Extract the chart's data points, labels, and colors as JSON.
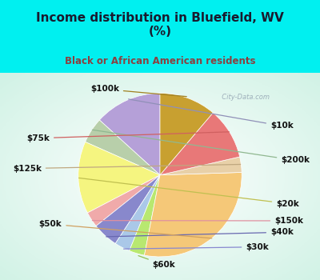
{
  "title": "Income distribution in Bluefield, WV\n(%)",
  "subtitle": "Black or African American residents",
  "title_color": "#1a1a2e",
  "subtitle_color": "#8b4040",
  "bg_cyan": "#00f0f0",
  "watermark": "  City-Data.com",
  "labels": [
    "$10k",
    "$200k",
    "$20k",
    "$150k",
    "$40k",
    "$30k",
    "$60k",
    "$50k",
    "$125k",
    "$75k",
    "$100k"
  ],
  "values": [
    13,
    5,
    14,
    3,
    5,
    3,
    3,
    28,
    3,
    10,
    11
  ],
  "colors": [
    "#b5a0d8",
    "#b8cfaa",
    "#f5f580",
    "#f0aaaa",
    "#8888cc",
    "#aac8e8",
    "#b8e870",
    "#f5c878",
    "#e8d0a8",
    "#e87878",
    "#c8a030"
  ],
  "line_colors": [
    "#9090b8",
    "#90b890",
    "#c0c050",
    "#e090a0",
    "#6868b0",
    "#8888d0",
    "#90c050",
    "#d0a060",
    "#c0a880",
    "#d06060",
    "#a08020"
  ],
  "startangle": 90,
  "figsize": [
    4.0,
    3.5
  ],
  "dpi": 100,
  "label_fontsize": 7.5
}
